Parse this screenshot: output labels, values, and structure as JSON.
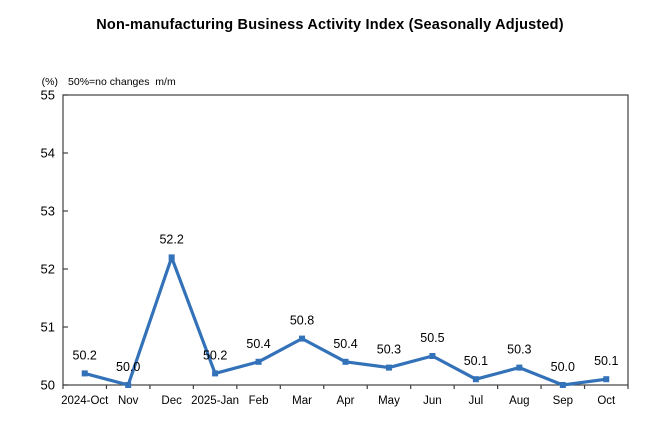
{
  "title": "Non-manufacturing Business Activity Index (Seasonally Adjusted)",
  "y_axis_unit": "(%)",
  "note": "50%=no changes  m/m",
  "chart_data": {
    "type": "line",
    "title": "Non-manufacturing Business Activity Index (Seasonally Adjusted)",
    "xlabel": "",
    "ylabel": "(%)",
    "categories": [
      "2024-Oct",
      "Nov",
      "Dec",
      "2025-Jan",
      "Feb",
      "Mar",
      "Apr",
      "May",
      "Jun",
      "Jul",
      "Aug",
      "Sep",
      "Oct"
    ],
    "series": [
      {
        "name": "Non-manufacturing Business Activity Index",
        "values": [
          50.2,
          50.0,
          52.2,
          50.2,
          50.4,
          50.8,
          50.4,
          50.3,
          50.5,
          50.1,
          50.3,
          50.0,
          50.1
        ]
      }
    ],
    "data_labels": [
      "50.2",
      "50.0",
      "52.2",
      "50.2",
      "50.4",
      "50.8",
      "50.4",
      "50.3",
      "50.5",
      "50.1",
      "50.3",
      "50.0",
      "50.1"
    ],
    "ylim": [
      50,
      55
    ],
    "yticks": [
      50,
      51,
      52,
      53,
      54,
      55
    ],
    "grid": false,
    "legend": "none",
    "colors": {
      "line": "#3372B8",
      "marker": "#3372B8",
      "axis": "#3F3F3F",
      "text": "#000000"
    }
  }
}
